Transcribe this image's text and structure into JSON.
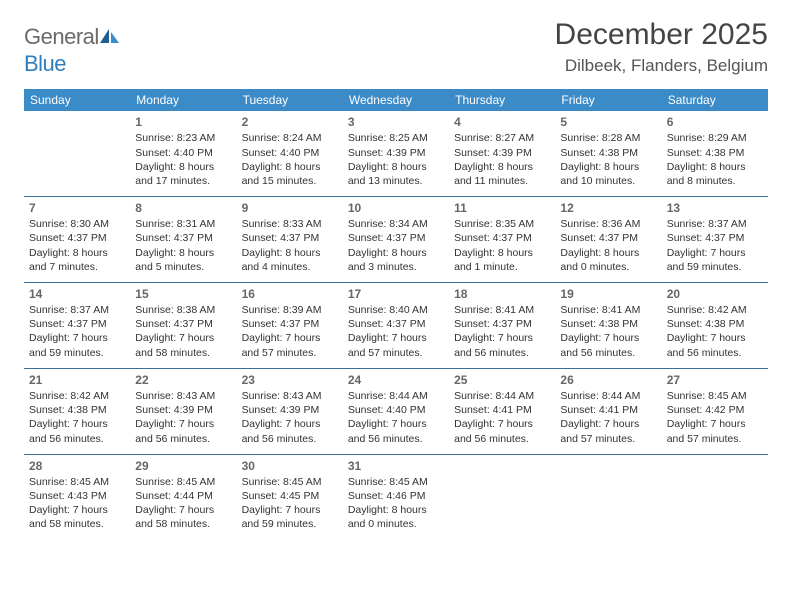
{
  "logo": {
    "part1": "General",
    "part2": "Blue"
  },
  "title": "December 2025",
  "location": "Dilbeek, Flanders, Belgium",
  "colors": {
    "header_bg": "#3b8bc8",
    "header_text": "#ffffff",
    "row_border": "#3b6f9a",
    "logo_gray": "#6b6b6b",
    "logo_blue": "#2f7fbf"
  },
  "day_headers": [
    "Sunday",
    "Monday",
    "Tuesday",
    "Wednesday",
    "Thursday",
    "Friday",
    "Saturday"
  ],
  "weeks": [
    [
      null,
      {
        "n": "1",
        "sr": "Sunrise: 8:23 AM",
        "ss": "Sunset: 4:40 PM",
        "d1": "Daylight: 8 hours",
        "d2": "and 17 minutes."
      },
      {
        "n": "2",
        "sr": "Sunrise: 8:24 AM",
        "ss": "Sunset: 4:40 PM",
        "d1": "Daylight: 8 hours",
        "d2": "and 15 minutes."
      },
      {
        "n": "3",
        "sr": "Sunrise: 8:25 AM",
        "ss": "Sunset: 4:39 PM",
        "d1": "Daylight: 8 hours",
        "d2": "and 13 minutes."
      },
      {
        "n": "4",
        "sr": "Sunrise: 8:27 AM",
        "ss": "Sunset: 4:39 PM",
        "d1": "Daylight: 8 hours",
        "d2": "and 11 minutes."
      },
      {
        "n": "5",
        "sr": "Sunrise: 8:28 AM",
        "ss": "Sunset: 4:38 PM",
        "d1": "Daylight: 8 hours",
        "d2": "and 10 minutes."
      },
      {
        "n": "6",
        "sr": "Sunrise: 8:29 AM",
        "ss": "Sunset: 4:38 PM",
        "d1": "Daylight: 8 hours",
        "d2": "and 8 minutes."
      }
    ],
    [
      {
        "n": "7",
        "sr": "Sunrise: 8:30 AM",
        "ss": "Sunset: 4:37 PM",
        "d1": "Daylight: 8 hours",
        "d2": "and 7 minutes."
      },
      {
        "n": "8",
        "sr": "Sunrise: 8:31 AM",
        "ss": "Sunset: 4:37 PM",
        "d1": "Daylight: 8 hours",
        "d2": "and 5 minutes."
      },
      {
        "n": "9",
        "sr": "Sunrise: 8:33 AM",
        "ss": "Sunset: 4:37 PM",
        "d1": "Daylight: 8 hours",
        "d2": "and 4 minutes."
      },
      {
        "n": "10",
        "sr": "Sunrise: 8:34 AM",
        "ss": "Sunset: 4:37 PM",
        "d1": "Daylight: 8 hours",
        "d2": "and 3 minutes."
      },
      {
        "n": "11",
        "sr": "Sunrise: 8:35 AM",
        "ss": "Sunset: 4:37 PM",
        "d1": "Daylight: 8 hours",
        "d2": "and 1 minute."
      },
      {
        "n": "12",
        "sr": "Sunrise: 8:36 AM",
        "ss": "Sunset: 4:37 PM",
        "d1": "Daylight: 8 hours",
        "d2": "and 0 minutes."
      },
      {
        "n": "13",
        "sr": "Sunrise: 8:37 AM",
        "ss": "Sunset: 4:37 PM",
        "d1": "Daylight: 7 hours",
        "d2": "and 59 minutes."
      }
    ],
    [
      {
        "n": "14",
        "sr": "Sunrise: 8:37 AM",
        "ss": "Sunset: 4:37 PM",
        "d1": "Daylight: 7 hours",
        "d2": "and 59 minutes."
      },
      {
        "n": "15",
        "sr": "Sunrise: 8:38 AM",
        "ss": "Sunset: 4:37 PM",
        "d1": "Daylight: 7 hours",
        "d2": "and 58 minutes."
      },
      {
        "n": "16",
        "sr": "Sunrise: 8:39 AM",
        "ss": "Sunset: 4:37 PM",
        "d1": "Daylight: 7 hours",
        "d2": "and 57 minutes."
      },
      {
        "n": "17",
        "sr": "Sunrise: 8:40 AM",
        "ss": "Sunset: 4:37 PM",
        "d1": "Daylight: 7 hours",
        "d2": "and 57 minutes."
      },
      {
        "n": "18",
        "sr": "Sunrise: 8:41 AM",
        "ss": "Sunset: 4:37 PM",
        "d1": "Daylight: 7 hours",
        "d2": "and 56 minutes."
      },
      {
        "n": "19",
        "sr": "Sunrise: 8:41 AM",
        "ss": "Sunset: 4:38 PM",
        "d1": "Daylight: 7 hours",
        "d2": "and 56 minutes."
      },
      {
        "n": "20",
        "sr": "Sunrise: 8:42 AM",
        "ss": "Sunset: 4:38 PM",
        "d1": "Daylight: 7 hours",
        "d2": "and 56 minutes."
      }
    ],
    [
      {
        "n": "21",
        "sr": "Sunrise: 8:42 AM",
        "ss": "Sunset: 4:38 PM",
        "d1": "Daylight: 7 hours",
        "d2": "and 56 minutes."
      },
      {
        "n": "22",
        "sr": "Sunrise: 8:43 AM",
        "ss": "Sunset: 4:39 PM",
        "d1": "Daylight: 7 hours",
        "d2": "and 56 minutes."
      },
      {
        "n": "23",
        "sr": "Sunrise: 8:43 AM",
        "ss": "Sunset: 4:39 PM",
        "d1": "Daylight: 7 hours",
        "d2": "and 56 minutes."
      },
      {
        "n": "24",
        "sr": "Sunrise: 8:44 AM",
        "ss": "Sunset: 4:40 PM",
        "d1": "Daylight: 7 hours",
        "d2": "and 56 minutes."
      },
      {
        "n": "25",
        "sr": "Sunrise: 8:44 AM",
        "ss": "Sunset: 4:41 PM",
        "d1": "Daylight: 7 hours",
        "d2": "and 56 minutes."
      },
      {
        "n": "26",
        "sr": "Sunrise: 8:44 AM",
        "ss": "Sunset: 4:41 PM",
        "d1": "Daylight: 7 hours",
        "d2": "and 57 minutes."
      },
      {
        "n": "27",
        "sr": "Sunrise: 8:45 AM",
        "ss": "Sunset: 4:42 PM",
        "d1": "Daylight: 7 hours",
        "d2": "and 57 minutes."
      }
    ],
    [
      {
        "n": "28",
        "sr": "Sunrise: 8:45 AM",
        "ss": "Sunset: 4:43 PM",
        "d1": "Daylight: 7 hours",
        "d2": "and 58 minutes."
      },
      {
        "n": "29",
        "sr": "Sunrise: 8:45 AM",
        "ss": "Sunset: 4:44 PM",
        "d1": "Daylight: 7 hours",
        "d2": "and 58 minutes."
      },
      {
        "n": "30",
        "sr": "Sunrise: 8:45 AM",
        "ss": "Sunset: 4:45 PM",
        "d1": "Daylight: 7 hours",
        "d2": "and 59 minutes."
      },
      {
        "n": "31",
        "sr": "Sunrise: 8:45 AM",
        "ss": "Sunset: 4:46 PM",
        "d1": "Daylight: 8 hours",
        "d2": "and 0 minutes."
      },
      null,
      null,
      null
    ]
  ]
}
